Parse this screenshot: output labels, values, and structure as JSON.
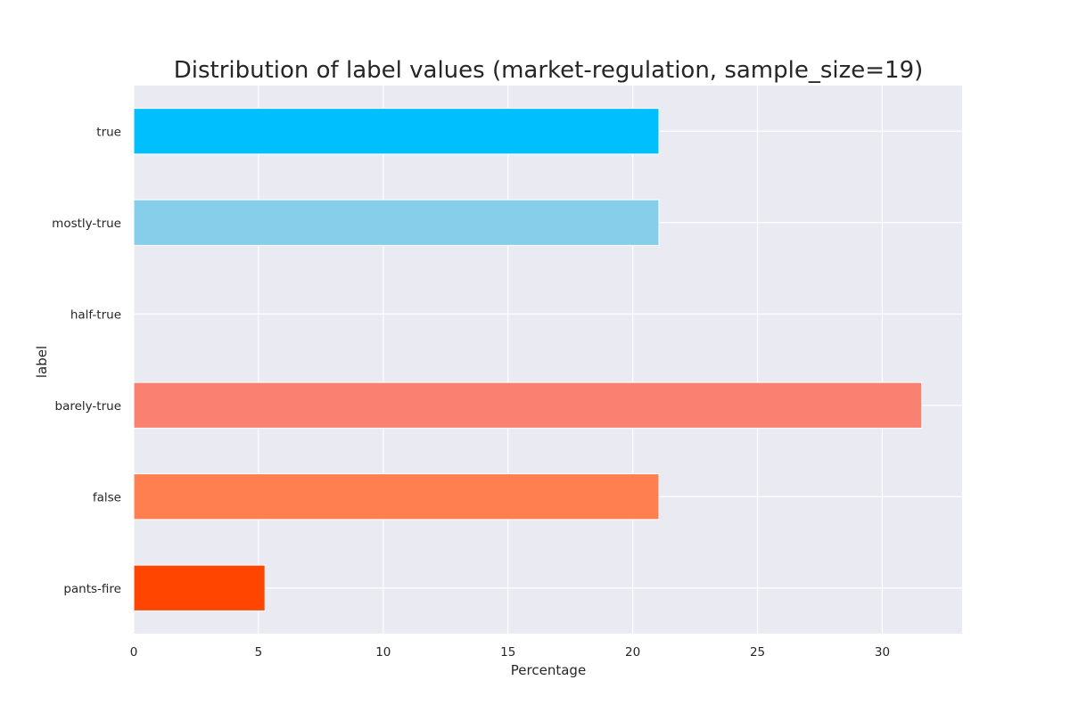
{
  "chart_data": {
    "type": "bar",
    "orientation": "horizontal",
    "title": "Distribution of label values (market-regulation, sample_size=19)",
    "xlabel": "Percentage",
    "ylabel": "label",
    "categories": [
      "true",
      "mostly-true",
      "half-true",
      "barely-true",
      "false",
      "pants-fire"
    ],
    "values": [
      21.05,
      21.05,
      0,
      31.58,
      21.05,
      5.26
    ],
    "colors": [
      "#00bfff",
      "#87ceeb",
      "#d3d3d3",
      "#fa8072",
      "#ff7f50",
      "#ff4500"
    ],
    "xlim": [
      0,
      33.2
    ],
    "xticks": [
      0,
      5,
      10,
      15,
      20,
      25,
      30
    ],
    "grid": true,
    "background": "#eaeaf2",
    "gridline_color": "#ffffff"
  }
}
